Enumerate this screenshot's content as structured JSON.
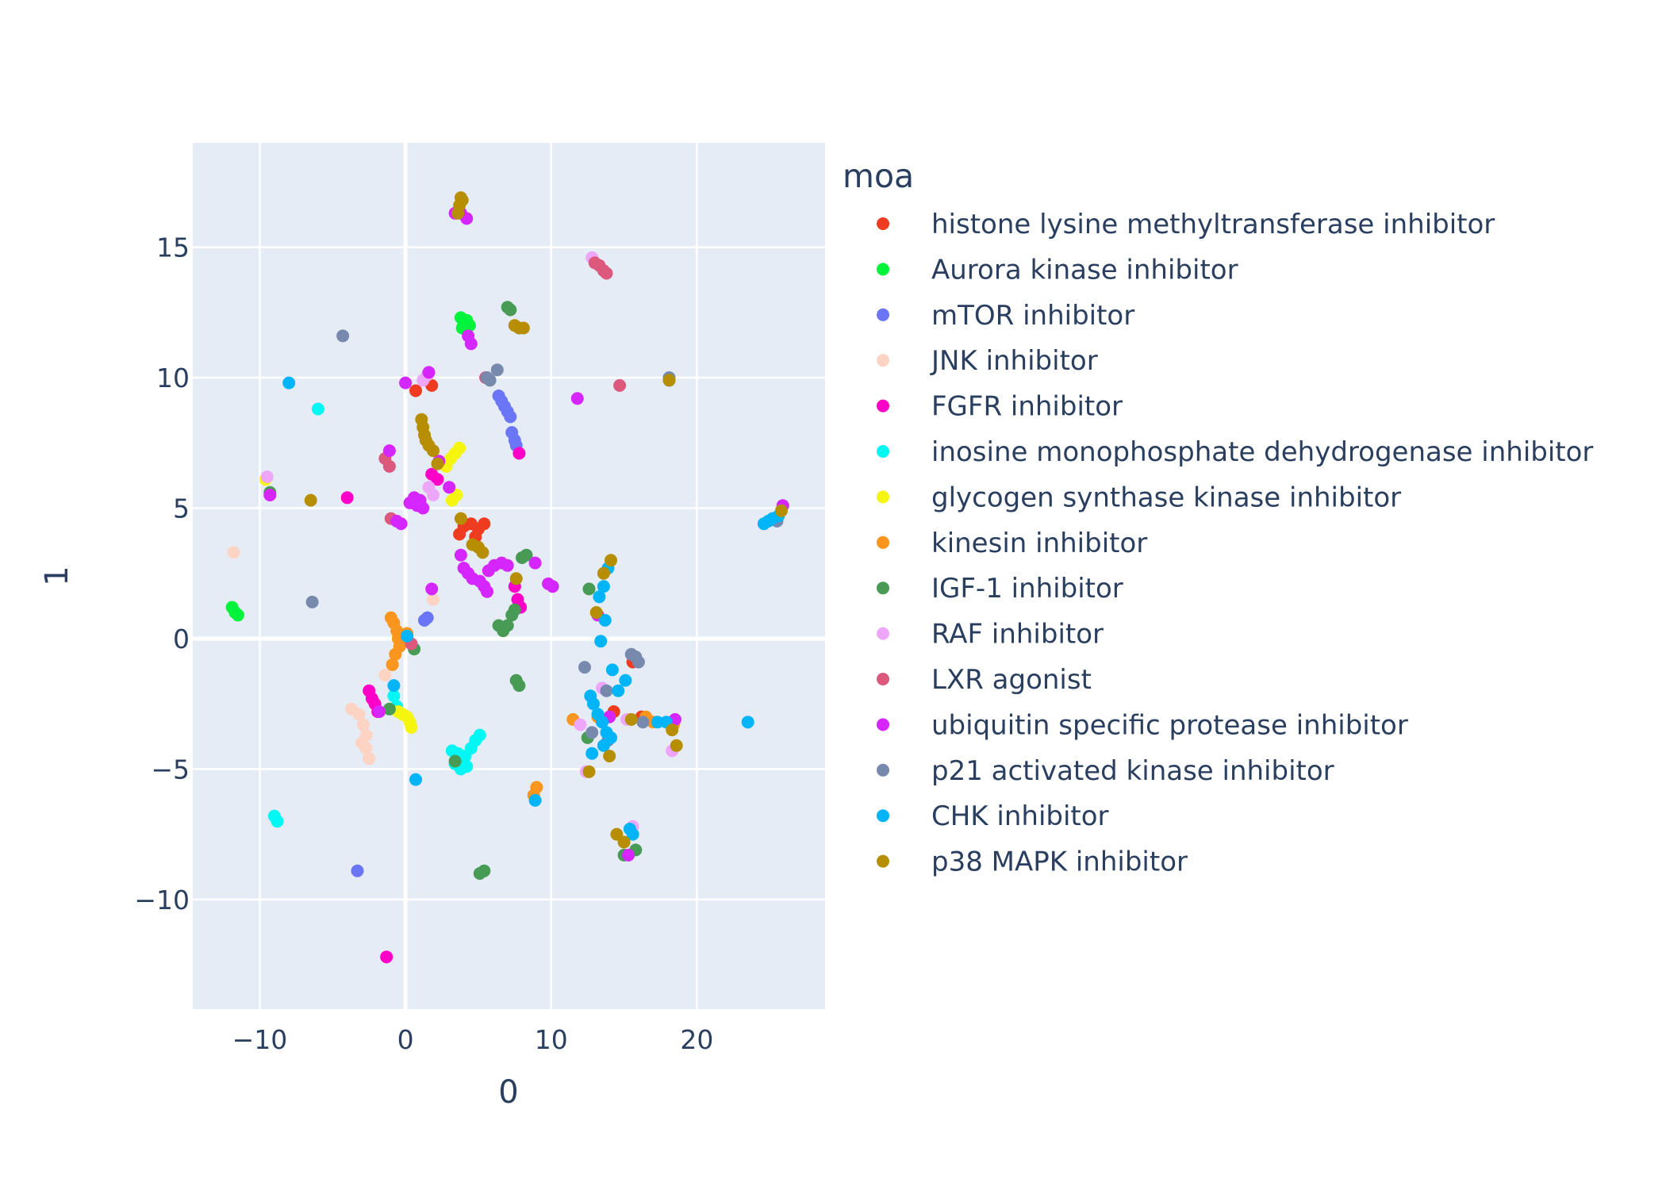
{
  "chart_data": {
    "type": "scatter",
    "xlabel": "0",
    "ylabel": "1",
    "xlim": [
      -14.6,
      28.8
    ],
    "ylim": [
      -14.2,
      19.0
    ],
    "x_ticks": [
      {
        "v": -10,
        "label": "−10"
      },
      {
        "v": 0,
        "label": "0"
      },
      {
        "v": 10,
        "label": "10"
      },
      {
        "v": 20,
        "label": "20"
      }
    ],
    "y_ticks": [
      {
        "v": -10,
        "label": "−10"
      },
      {
        "v": -5,
        "label": "−5"
      },
      {
        "v": 0,
        "label": "0"
      },
      {
        "v": 5,
        "label": "5"
      },
      {
        "v": 10,
        "label": "10"
      },
      {
        "v": 15,
        "label": "15"
      }
    ],
    "grid": true,
    "plot_bg": "#e5ecf6",
    "legend_title": "moa",
    "legend_position": "right",
    "series": [
      {
        "name": "histone lysine methyltransferase inhibitor",
        "color": "#EF3B1F",
        "points": [
          [
            0.7,
            9.5
          ],
          [
            1.8,
            9.7
          ],
          [
            3.7,
            4.0
          ],
          [
            4.0,
            4.3
          ],
          [
            4.5,
            4.4
          ],
          [
            5.0,
            4.2
          ],
          [
            5.4,
            4.4
          ],
          [
            4.8,
            3.9
          ],
          [
            15.6,
            -0.9
          ],
          [
            14.3,
            -2.8
          ],
          [
            16.2,
            -3.0
          ]
        ]
      },
      {
        "name": "Aurora kinase inhibitor",
        "color": "#00F33B",
        "points": [
          [
            -11.9,
            1.2
          ],
          [
            -11.7,
            1.0
          ],
          [
            -11.5,
            0.9
          ],
          [
            3.8,
            12.3
          ],
          [
            4.0,
            12.1
          ],
          [
            4.2,
            12.2
          ],
          [
            4.4,
            12.0
          ],
          [
            3.9,
            11.9
          ]
        ]
      },
      {
        "name": "mTOR inhibitor",
        "color": "#6A76F6",
        "points": [
          [
            -3.3,
            -8.9
          ],
          [
            1.3,
            0.7
          ],
          [
            1.5,
            0.8
          ],
          [
            6.4,
            9.3
          ],
          [
            6.6,
            9.1
          ],
          [
            6.8,
            8.9
          ],
          [
            7.0,
            8.7
          ],
          [
            7.2,
            8.5
          ],
          [
            7.3,
            7.9
          ],
          [
            7.5,
            7.6
          ],
          [
            7.6,
            7.4
          ]
        ]
      },
      {
        "name": "JNK inhibitor",
        "color": "#FDD3C4",
        "points": [
          [
            -11.8,
            3.3
          ],
          [
            -3.7,
            -2.7
          ],
          [
            -3.2,
            -2.9
          ],
          [
            -2.9,
            -3.3
          ],
          [
            -2.7,
            -3.7
          ],
          [
            -2.7,
            -4.2
          ],
          [
            -2.5,
            -4.6
          ],
          [
            -3.0,
            -4.0
          ],
          [
            -1.4,
            -1.4
          ],
          [
            1.9,
            1.5
          ]
        ]
      },
      {
        "name": "FGFR inhibitor",
        "color": "#FF00C8",
        "points": [
          [
            -4.0,
            5.4
          ],
          [
            -2.5,
            -2.0
          ],
          [
            -2.3,
            -2.3
          ],
          [
            -2.1,
            -2.5
          ],
          [
            -1.9,
            -2.8
          ],
          [
            -1.3,
            -12.2
          ],
          [
            1.8,
            6.3
          ],
          [
            2.2,
            6.1
          ],
          [
            7.5,
            2.0
          ],
          [
            7.7,
            1.5
          ],
          [
            7.9,
            1.2
          ],
          [
            7.8,
            7.1
          ]
        ]
      },
      {
        "name": "inosine monophosphate dehydrogenase inhibitor",
        "color": "#00F8F4",
        "points": [
          [
            -6.0,
            8.8
          ],
          [
            -9.0,
            -6.8
          ],
          [
            -8.8,
            -7.0
          ],
          [
            -0.8,
            -2.2
          ],
          [
            -0.6,
            -2.6
          ],
          [
            3.2,
            -4.3
          ],
          [
            3.6,
            -4.4
          ],
          [
            3.9,
            -4.6
          ],
          [
            4.2,
            -4.9
          ],
          [
            4.5,
            -4.2
          ],
          [
            4.8,
            -3.9
          ],
          [
            5.1,
            -3.7
          ],
          [
            3.4,
            -4.8
          ],
          [
            3.8,
            -5.0
          ],
          [
            4.1,
            -4.5
          ]
        ]
      },
      {
        "name": "glycogen synthase kinase inhibitor",
        "color": "#F5F50E",
        "points": [
          [
            -9.6,
            6.1
          ],
          [
            -0.5,
            -2.8
          ],
          [
            -0.2,
            -2.9
          ],
          [
            0.1,
            -3.0
          ],
          [
            0.3,
            -3.2
          ],
          [
            0.4,
            -3.4
          ],
          [
            2.8,
            6.6
          ],
          [
            3.1,
            6.9
          ],
          [
            3.4,
            7.1
          ],
          [
            3.7,
            7.3
          ],
          [
            3.2,
            5.3
          ],
          [
            3.5,
            5.5
          ]
        ]
      },
      {
        "name": "kinesin inhibitor",
        "color": "#FA961E",
        "points": [
          [
            -1.0,
            0.8
          ],
          [
            -0.8,
            0.6
          ],
          [
            -0.6,
            0.3
          ],
          [
            -0.5,
            0.0
          ],
          [
            -0.4,
            -0.3
          ],
          [
            -0.7,
            -0.6
          ],
          [
            -0.9,
            -1.0
          ],
          [
            0.1,
            0.2
          ],
          [
            -0.3,
            -0.2
          ],
          [
            9.0,
            -5.7
          ],
          [
            8.8,
            -6.0
          ],
          [
            11.5,
            -3.1
          ],
          [
            13.2,
            -3.0
          ],
          [
            17.0,
            -3.2
          ],
          [
            16.5,
            -3.0
          ],
          [
            18.4,
            -3.3
          ]
        ]
      },
      {
        "name": "IGF-1 inhibitor",
        "color": "#479B55",
        "points": [
          [
            -9.3,
            5.6
          ],
          [
            -1.1,
            -2.7
          ],
          [
            0.6,
            -0.4
          ],
          [
            3.4,
            -4.7
          ],
          [
            5.1,
            -9.0
          ],
          [
            5.4,
            -8.9
          ],
          [
            6.4,
            0.5
          ],
          [
            6.7,
            0.3
          ],
          [
            7.0,
            0.5
          ],
          [
            7.3,
            0.9
          ],
          [
            7.5,
            1.1
          ],
          [
            7.6,
            -1.6
          ],
          [
            7.8,
            -1.8
          ],
          [
            7.0,
            12.7
          ],
          [
            7.2,
            12.6
          ],
          [
            8.0,
            3.1
          ],
          [
            8.3,
            3.2
          ],
          [
            12.5,
            -3.8
          ],
          [
            12.6,
            1.9
          ],
          [
            15.0,
            -8.3
          ],
          [
            15.8,
            -8.1
          ]
        ]
      },
      {
        "name": "RAF inhibitor",
        "color": "#EEA6FB",
        "points": [
          [
            -9.5,
            6.2
          ],
          [
            1.2,
            9.9
          ],
          [
            1.5,
            10.1
          ],
          [
            1.6,
            5.8
          ],
          [
            1.9,
            5.5
          ],
          [
            12.8,
            14.6
          ],
          [
            13.5,
            -1.9
          ],
          [
            12.4,
            -5.1
          ],
          [
            15.6,
            -7.2
          ],
          [
            18.3,
            -4.3
          ],
          [
            12.0,
            -3.3
          ],
          [
            15.2,
            -3.1
          ]
        ]
      },
      {
        "name": "LXR agonist",
        "color": "#DC587D",
        "points": [
          [
            -1.4,
            6.9
          ],
          [
            -1.1,
            6.6
          ],
          [
            -1.0,
            4.6
          ],
          [
            0.4,
            -0.2
          ],
          [
            5.5,
            10.0
          ],
          [
            13.0,
            14.4
          ],
          [
            13.3,
            14.3
          ],
          [
            13.6,
            14.1
          ],
          [
            13.8,
            14.0
          ],
          [
            14.7,
            9.7
          ]
        ]
      },
      {
        "name": "ubiquitin specific protease inhibitor",
        "color": "#D626FF",
        "points": [
          [
            -9.3,
            5.5
          ],
          [
            -1.8,
            -2.8
          ],
          [
            -1.1,
            7.2
          ],
          [
            -0.6,
            4.5
          ],
          [
            -0.3,
            4.4
          ],
          [
            0.0,
            9.8
          ],
          [
            0.3,
            5.2
          ],
          [
            0.6,
            5.4
          ],
          [
            0.8,
            5.1
          ],
          [
            1.0,
            5.3
          ],
          [
            1.2,
            5.0
          ],
          [
            1.6,
            10.2
          ],
          [
            1.8,
            1.9
          ],
          [
            3.4,
            16.3
          ],
          [
            3.8,
            16.3
          ],
          [
            4.2,
            16.1
          ],
          [
            4.3,
            11.6
          ],
          [
            4.5,
            11.3
          ],
          [
            3.8,
            3.2
          ],
          [
            4.0,
            2.7
          ],
          [
            4.3,
            2.5
          ],
          [
            4.6,
            2.3
          ],
          [
            5.1,
            2.2
          ],
          [
            5.4,
            2.0
          ],
          [
            5.6,
            1.8
          ],
          [
            5.7,
            2.6
          ],
          [
            6.1,
            2.8
          ],
          [
            6.6,
            2.9
          ],
          [
            7.0,
            2.8
          ],
          [
            8.9,
            2.9
          ],
          [
            9.8,
            2.1
          ],
          [
            10.1,
            2.0
          ],
          [
            11.8,
            9.2
          ],
          [
            13.2,
            0.9
          ],
          [
            14.0,
            -3.0
          ],
          [
            15.3,
            -8.3
          ],
          [
            18.5,
            -3.1
          ],
          [
            25.9,
            5.1
          ],
          [
            2.3,
            6.8
          ],
          [
            3.0,
            5.8
          ]
        ]
      },
      {
        "name": "p21 activated kinase inhibitor",
        "color": "#778AAE",
        "points": [
          [
            -4.3,
            11.6
          ],
          [
            -6.4,
            1.4
          ],
          [
            5.6,
            10.0
          ],
          [
            5.8,
            9.9
          ],
          [
            6.3,
            10.3
          ],
          [
            12.3,
            -1.1
          ],
          [
            13.8,
            -2.0
          ],
          [
            15.5,
            -0.6
          ],
          [
            15.8,
            -0.7
          ],
          [
            16.0,
            -0.9
          ],
          [
            16.3,
            -3.2
          ],
          [
            18.1,
            10.0
          ],
          [
            25.5,
            4.5
          ],
          [
            12.8,
            -3.6
          ],
          [
            13.9,
            -3.9
          ]
        ]
      },
      {
        "name": "CHK inhibitor",
        "color": "#00B5F7",
        "points": [
          [
            -8.0,
            9.8
          ],
          [
            -0.8,
            -1.8
          ],
          [
            0.1,
            0.1
          ],
          [
            0.7,
            -5.4
          ],
          [
            8.9,
            -6.2
          ],
          [
            12.7,
            -2.2
          ],
          [
            12.9,
            -2.5
          ],
          [
            13.2,
            -2.9
          ],
          [
            13.5,
            -3.2
          ],
          [
            13.8,
            -3.6
          ],
          [
            13.6,
            -4.1
          ],
          [
            12.8,
            -4.4
          ],
          [
            13.4,
            -0.1
          ],
          [
            13.7,
            0.7
          ],
          [
            13.3,
            1.6
          ],
          [
            13.6,
            2.0
          ],
          [
            13.9,
            2.7
          ],
          [
            14.2,
            -1.2
          ],
          [
            14.6,
            -2.0
          ],
          [
            15.1,
            -1.6
          ],
          [
            15.4,
            -7.3
          ],
          [
            15.6,
            -7.5
          ],
          [
            17.3,
            -3.2
          ],
          [
            17.9,
            -3.2
          ],
          [
            18.1,
            9.9
          ],
          [
            23.5,
            -3.2
          ],
          [
            24.6,
            4.4
          ],
          [
            24.9,
            4.5
          ],
          [
            25.2,
            4.6
          ],
          [
            25.6,
            4.7
          ],
          [
            14.1,
            -3.8
          ]
        ]
      },
      {
        "name": "p38 MAPK inhibitor",
        "color": "#B68E00",
        "points": [
          [
            -6.5,
            5.3
          ],
          [
            1.1,
            8.4
          ],
          [
            1.2,
            8.1
          ],
          [
            1.3,
            7.8
          ],
          [
            1.4,
            7.6
          ],
          [
            1.6,
            7.4
          ],
          [
            1.9,
            7.2
          ],
          [
            2.2,
            6.7
          ],
          [
            3.7,
            16.6
          ],
          [
            3.8,
            16.9
          ],
          [
            3.9,
            16.8
          ],
          [
            3.6,
            16.3
          ],
          [
            3.8,
            4.6
          ],
          [
            4.6,
            3.6
          ],
          [
            5.0,
            3.5
          ],
          [
            5.3,
            3.3
          ],
          [
            7.5,
            12.0
          ],
          [
            7.8,
            11.9
          ],
          [
            8.1,
            11.9
          ],
          [
            7.6,
            2.3
          ],
          [
            13.1,
            1.0
          ],
          [
            13.6,
            2.5
          ],
          [
            14.1,
            3.0
          ],
          [
            12.6,
            -5.1
          ],
          [
            14.0,
            -4.5
          ],
          [
            14.5,
            -7.5
          ],
          [
            15.0,
            -7.8
          ],
          [
            18.1,
            9.9
          ],
          [
            18.3,
            -3.5
          ],
          [
            18.6,
            -4.1
          ],
          [
            25.8,
            4.9
          ],
          [
            15.5,
            -3.1
          ]
        ]
      }
    ]
  }
}
